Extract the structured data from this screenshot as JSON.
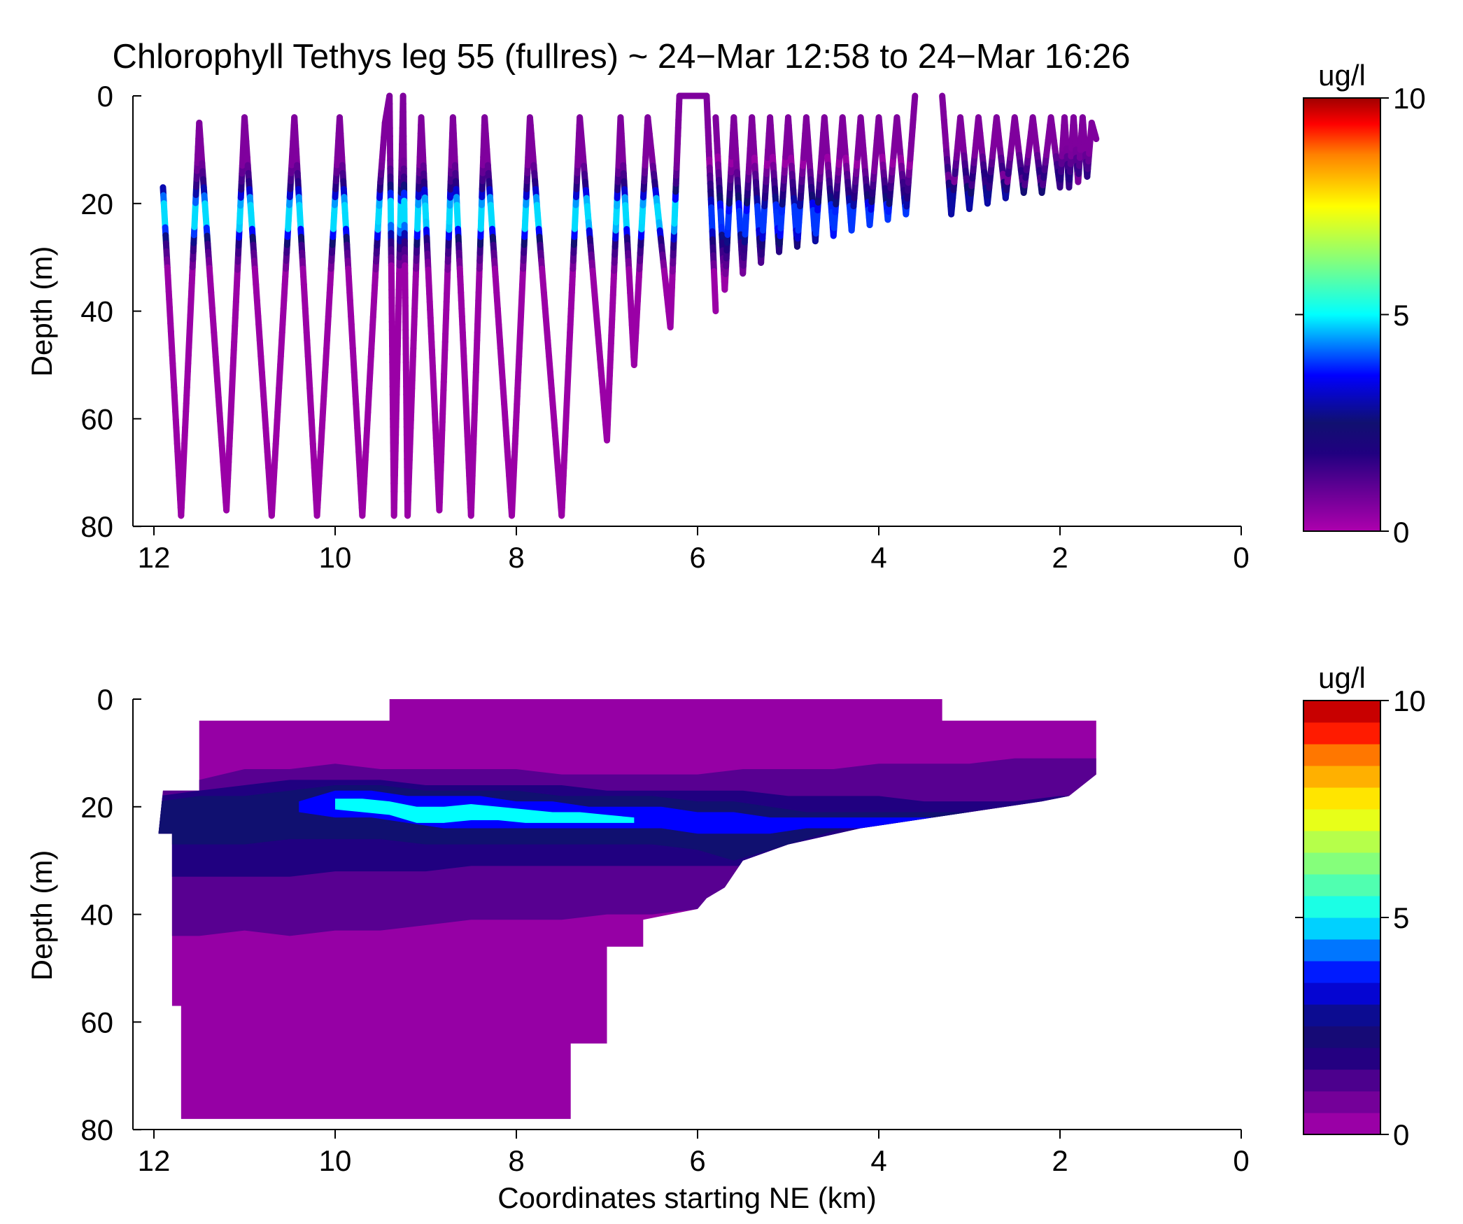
{
  "figure": {
    "title": "Chlorophyll Tethys leg 55 (fullres) ~ 24−Mar 12:58 to 24−Mar 16:26"
  },
  "chart_data": [
    {
      "type": "scatter",
      "subtype": "sawtooth-profile-track",
      "xlabel": "",
      "ylabel": "Depth (m)",
      "xlim": [
        12.4,
        0
      ],
      "ylim": [
        80,
        0
      ],
      "x_reversed": true,
      "y_reversed": true,
      "x_ticks": [
        "12",
        "10",
        "8",
        "6",
        "4",
        "2",
        "0"
      ],
      "y_ticks": [
        "0",
        "20",
        "40",
        "60",
        "80"
      ],
      "colorbar": {
        "label": "ug/l",
        "range": [
          0,
          10
        ],
        "ticks": [
          "0",
          "5",
          "10"
        ],
        "colormap": "jet-magenta"
      },
      "series": [
        {
          "segment": 1,
          "x": [
            11.9,
            11.7,
            11.5,
            11.2,
            11.0,
            10.7,
            10.45,
            10.2,
            9.95,
            9.7,
            9.5,
            9.45,
            9.4,
            9.35,
            9.25,
            9.2,
            9.05,
            8.85,
            8.7,
            8.5,
            8.35,
            8.05,
            7.85,
            7.5,
            7.3,
            7.0,
            6.85,
            6.7,
            6.55,
            6.3
          ],
          "y": [
            17,
            78,
            5,
            77,
            4,
            78,
            4,
            78,
            4,
            78,
            16,
            5,
            0,
            78,
            0,
            78,
            4,
            77,
            4,
            78,
            4,
            78,
            4,
            78,
            4,
            64,
            4,
            50,
            4,
            43
          ]
        },
        {
          "segment": 2,
          "x": [
            6.3,
            6.2,
            6.0,
            5.9,
            5.8
          ],
          "y": [
            43,
            0,
            0,
            0,
            40
          ]
        },
        {
          "segment": 3,
          "x": [
            5.8,
            5.7,
            5.6,
            5.5,
            5.4,
            5.3,
            5.2,
            5.1,
            5.0,
            4.9,
            4.8,
            4.7,
            4.6,
            4.5,
            4.4,
            4.3,
            4.2,
            4.1,
            4.0,
            3.9,
            3.8,
            3.7,
            3.6
          ],
          "y": [
            4,
            36,
            4,
            33,
            4,
            31,
            4,
            29,
            4,
            28,
            4,
            27,
            4,
            26,
            4,
            25,
            4,
            24,
            4,
            23,
            4,
            22,
            0
          ]
        },
        {
          "segment": 4,
          "x": [
            3.3,
            3.2,
            3.1,
            3.0,
            2.9,
            2.8,
            2.7,
            2.6,
            2.5,
            2.4,
            2.3,
            2.2,
            2.1,
            2.0,
            1.95,
            1.9,
            1.85,
            1.8,
            1.75,
            1.7,
            1.65,
            1.6
          ],
          "y": [
            0,
            22,
            4,
            21,
            4,
            20,
            4,
            19,
            4,
            18,
            4,
            18,
            4,
            17,
            4,
            17,
            4,
            16,
            4,
            15,
            5,
            8
          ]
        }
      ]
    },
    {
      "type": "heatmap",
      "subtype": "filled-contour",
      "xlabel": "Coordinates starting NE (km)",
      "ylabel": "Depth (m)",
      "xlim": [
        12.4,
        0
      ],
      "ylim": [
        80,
        0
      ],
      "x_reversed": true,
      "y_reversed": true,
      "x_ticks": [
        "12",
        "10",
        "8",
        "6",
        "4",
        "2",
        "0"
      ],
      "y_ticks": [
        "0",
        "20",
        "40",
        "60",
        "80"
      ],
      "colorbar": {
        "label": "ug/l",
        "range": [
          0,
          10
        ],
        "ticks": [
          "0",
          "5",
          "10"
        ],
        "levels": 20,
        "colormap": "jet-magenta-discrete"
      },
      "background_value": 0.3,
      "outline": [
        [
          11.9,
          17
        ],
        [
          11.5,
          17
        ],
        [
          11.5,
          4
        ],
        [
          9.4,
          4
        ],
        [
          9.4,
          0
        ],
        [
          3.3,
          0
        ],
        [
          3.3,
          4
        ],
        [
          1.6,
          4
        ],
        [
          1.6,
          14
        ],
        [
          1.9,
          18
        ],
        [
          2.2,
          19
        ],
        [
          3.4,
          22
        ],
        [
          4.2,
          24
        ],
        [
          5.0,
          27
        ],
        [
          5.5,
          30
        ],
        [
          5.7,
          35
        ],
        [
          5.9,
          37
        ],
        [
          6.0,
          39
        ],
        [
          6.6,
          41
        ],
        [
          6.6,
          46
        ],
        [
          7.0,
          46
        ],
        [
          7.0,
          64
        ],
        [
          7.4,
          64
        ],
        [
          7.4,
          78
        ],
        [
          11.7,
          78
        ],
        [
          11.7,
          57
        ],
        [
          11.8,
          57
        ],
        [
          11.8,
          25
        ],
        [
          11.95,
          25
        ]
      ],
      "bands": [
        {
          "value": 1.1,
          "x": [
            11.95,
            11.5,
            11.0,
            10.5,
            10.0,
            9.5,
            9.0,
            8.5,
            8.0,
            7.5,
            7.0,
            6.5,
            6.0,
            5.5,
            5.0,
            4.5,
            4.0,
            3.5,
            3.0,
            2.5,
            2.0,
            1.6
          ],
          "top": [
            17,
            15,
            13,
            13,
            12,
            13,
            13,
            13,
            13,
            14,
            14,
            14,
            14,
            13,
            13,
            13,
            12,
            12,
            12,
            11,
            11,
            11
          ],
          "bot": [
            44,
            44,
            43,
            44,
            43,
            43,
            42,
            41,
            41,
            41,
            40,
            40,
            39,
            34,
            30,
            27,
            25,
            24,
            23,
            22,
            20,
            16
          ]
        },
        {
          "value": 1.8,
          "x": [
            11.95,
            11.5,
            11.0,
            10.5,
            10.0,
            9.5,
            9.0,
            8.5,
            8.0,
            7.5,
            7.0,
            6.5,
            6.0,
            5.5,
            5.0,
            4.5,
            4.0,
            3.5,
            3.0,
            2.5,
            2.0,
            1.8
          ],
          "top": [
            18,
            17,
            16,
            15,
            15,
            15,
            16,
            16,
            16,
            16,
            17,
            17,
            17,
            17,
            18,
            18,
            18,
            19,
            19,
            19,
            18,
            18
          ],
          "bot": [
            33,
            33,
            33,
            33,
            32,
            32,
            32,
            31,
            31,
            31,
            31,
            31,
            31,
            31,
            29,
            26,
            24,
            23,
            22,
            21,
            20,
            19
          ]
        },
        {
          "value": 2.5,
          "x": [
            11.95,
            11.5,
            11.0,
            10.5,
            10.0,
            9.5,
            9.0,
            8.5,
            8.0,
            7.5,
            7.0,
            6.5,
            6.0,
            5.6,
            5.2,
            4.8,
            4.4,
            4.0,
            3.5,
            3.0,
            2.5,
            2.2
          ],
          "top": [
            19,
            18,
            18,
            17,
            16,
            16,
            17,
            17,
            17,
            18,
            18,
            18,
            19,
            19,
            20,
            21,
            21,
            21,
            21,
            21,
            21,
            21
          ],
          "bot": [
            27,
            27,
            27,
            26,
            26,
            26,
            27,
            27,
            27,
            27,
            27,
            27,
            28,
            30,
            28,
            26,
            24,
            23,
            22,
            22,
            21,
            21
          ]
        },
        {
          "value": 3.6,
          "x": [
            10.4,
            10.0,
            9.6,
            9.2,
            8.8,
            8.4,
            8.0,
            7.6,
            7.2,
            6.8,
            6.4,
            6.0,
            5.6,
            5.2,
            4.8,
            4.4,
            4.0,
            3.6,
            3.2
          ],
          "top": [
            19,
            17,
            17,
            18,
            18,
            18,
            19,
            19,
            20,
            20,
            20,
            21,
            21,
            22,
            22,
            22,
            22,
            22,
            22
          ],
          "bot": [
            21,
            22,
            22,
            23,
            24,
            24,
            24,
            24,
            24,
            24,
            24,
            25,
            25,
            25,
            24,
            24,
            24,
            23,
            23
          ]
        },
        {
          "value": 5.0,
          "x": [
            10.0,
            9.7,
            9.4,
            9.1,
            8.8,
            8.5,
            8.2,
            7.9,
            7.6,
            7.3,
            7.0,
            6.7
          ],
          "top": [
            18.5,
            18.5,
            19,
            20,
            20,
            19.5,
            20,
            20.5,
            21,
            21,
            21.5,
            22
          ],
          "bot": [
            20.5,
            21,
            21.5,
            23,
            23,
            22.5,
            22.5,
            23,
            23,
            23,
            23,
            23
          ]
        }
      ]
    }
  ]
}
